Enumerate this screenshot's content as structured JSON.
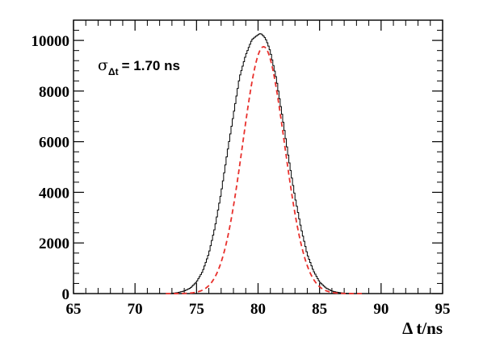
{
  "chart_data": {
    "type": "line",
    "xlabel": "Δ t/ns",
    "ylabel": "",
    "xlim": [
      65,
      95
    ],
    "ylim": [
      0,
      10800
    ],
    "x_ticks": [
      65,
      70,
      75,
      80,
      85,
      90,
      95
    ],
    "y_ticks": [
      0,
      2000,
      4000,
      6000,
      8000,
      10000
    ],
    "grid": false,
    "legend": "none",
    "annotation": {
      "symbol": "σ",
      "subscript": "Δt",
      "text": "= 1.70 ns"
    },
    "series": [
      {
        "style": "histogram",
        "color": "#000000",
        "x": [
          73.0,
          73.5,
          74.0,
          74.5,
          75.0,
          75.5,
          76.0,
          76.5,
          77.0,
          77.5,
          78.0,
          78.5,
          79.0,
          79.5,
          79.8,
          80.0,
          80.2,
          80.4,
          80.6,
          80.8,
          81.0,
          81.5,
          82.0,
          82.5,
          83.0,
          83.5,
          84.0,
          84.5,
          85.0,
          85.5,
          86.0,
          86.5,
          87.0,
          87.5
        ],
        "y": [
          10,
          40,
          100,
          220,
          460,
          880,
          1580,
          2620,
          3980,
          5560,
          7060,
          8550,
          9420,
          10030,
          10150,
          10220,
          10280,
          10200,
          10080,
          9850,
          9560,
          8460,
          6930,
          5310,
          3820,
          2580,
          1550,
          900,
          460,
          230,
          100,
          45,
          15,
          5
        ]
      },
      {
        "style": "dashed-fit",
        "color": "#e8312d",
        "mean": 80.45,
        "sigma": 1.7,
        "amplitude": 9750
      }
    ]
  }
}
